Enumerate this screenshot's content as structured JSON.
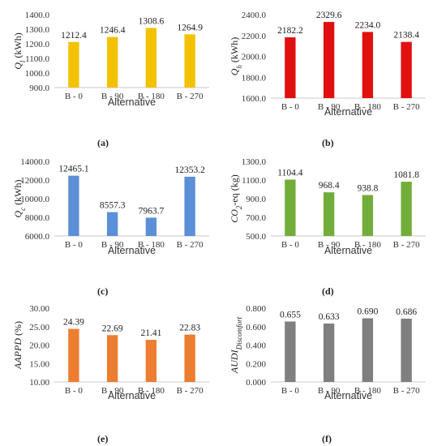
{
  "chart_data": [
    {
      "id": "a",
      "type": "bar",
      "caption": "(a)",
      "ylabel": "Q_l (kWh)",
      "ylabel_main": "Q",
      "ylabel_sub": "l",
      "ylabel_unit": " (kWh)",
      "xlabel": "Alternative",
      "categories": [
        "B - 0",
        "B - 90",
        "B - 180",
        "B - 270"
      ],
      "values": [
        1212.4,
        1246.4,
        1308.6,
        1264.9
      ],
      "value_labels": [
        "1212.4",
        "1246.4",
        "1308.6",
        "1264.9"
      ],
      "ylim": [
        900,
        1400
      ],
      "yticks": [
        "900.0",
        "1000.0",
        "1100.0",
        "1200.0",
        "1300.0",
        "1400.0"
      ],
      "color": "#f2c200",
      "grid": false
    },
    {
      "id": "b",
      "type": "bar",
      "caption": "(b)",
      "ylabel": "Q_h (kWh)",
      "ylabel_main": "Q",
      "ylabel_sub": "h",
      "ylabel_unit": " (kWh)",
      "xlabel": "Alternative",
      "categories": [
        "B - 0",
        "B - 90",
        "B - 180",
        "B - 270"
      ],
      "values": [
        2182.2,
        2329.6,
        2234.0,
        2138.4
      ],
      "value_labels": [
        "2182.2",
        "2329.6",
        "2234.0",
        "2138.4"
      ],
      "ylim": [
        1600,
        2400
      ],
      "yticks": [
        "1600.0",
        "1800.0",
        "2000.0",
        "2200.0",
        "2400.0"
      ],
      "color": "#e01010",
      "grid": false
    },
    {
      "id": "c",
      "type": "bar",
      "caption": "(c)",
      "ylabel": "Q_c (kWh)",
      "ylabel_main": "Q",
      "ylabel_sub": "c",
      "ylabel_unit": " (kWh)",
      "xlabel": "Alternative",
      "categories": [
        "B - 0",
        "B - 90",
        "B - 180",
        "B - 270"
      ],
      "values": [
        12465.1,
        8557.3,
        7963.7,
        12353.2
      ],
      "value_labels": [
        "12465.1",
        "8557.3",
        "7963.7",
        "12353.2"
      ],
      "ylim": [
        6000,
        14000
      ],
      "yticks": [
        "6000.0",
        "8000.0",
        "10000.0",
        "12000.0",
        "14000.0"
      ],
      "color": "#5b8fd6",
      "grid": false
    },
    {
      "id": "d",
      "type": "bar",
      "caption": "(d)",
      "ylabel": "CO2-eq (kg)",
      "ylabel_main": "CO",
      "ylabel_sub": "2",
      "ylabel_unit": "-eq (kg)",
      "xlabel": "Alternative",
      "categories": [
        "B - 0",
        "B - 90",
        "B - 180",
        "B - 270"
      ],
      "values": [
        1104.4,
        968.4,
        938.8,
        1081.8
      ],
      "value_labels": [
        "1104.4",
        "968.4",
        "938.8",
        "1081.8"
      ],
      "ylim": [
        500,
        1300
      ],
      "yticks": [
        "500.0",
        "700.0",
        "900.0",
        "1100.0",
        "1300.0"
      ],
      "color": "#72ad3c",
      "grid": false
    },
    {
      "id": "e",
      "type": "bar",
      "caption": "(e)",
      "ylabel": "AAPPD (%)",
      "ylabel_main": "AAPPD",
      "ylabel_sub": "",
      "ylabel_unit": " (%)",
      "xlabel": "Alternative",
      "categories": [
        "B - 0",
        "B - 90",
        "B - 180",
        "B - 270"
      ],
      "values": [
        24.39,
        22.69,
        21.41,
        22.83
      ],
      "value_labels": [
        "24.39",
        "22.69",
        "21.41",
        "22.83"
      ],
      "ylim": [
        10,
        30
      ],
      "yticks": [
        "10.00",
        "15.00",
        "20.00",
        "25.00",
        "30.00"
      ],
      "color": "#ed7d31",
      "grid": false
    },
    {
      "id": "f",
      "type": "bar",
      "caption": "(f)",
      "ylabel": "AUDI_Discomfort",
      "ylabel_main": "AUDI",
      "ylabel_sub": "Discomfort",
      "ylabel_unit": "",
      "xlabel": "Alternative",
      "categories": [
        "B - 0",
        "B - 90",
        "B - 180",
        "B - 270"
      ],
      "values": [
        0.655,
        0.633,
        0.69,
        0.686
      ],
      "value_labels": [
        "0.655",
        "0.633",
        "0.690",
        "0.686"
      ],
      "ylim": [
        0,
        0.8
      ],
      "yticks": [
        "0.000",
        "0.200",
        "0.400",
        "0.600",
        "0.800"
      ],
      "color": "#7f7f7f",
      "grid": false
    }
  ]
}
